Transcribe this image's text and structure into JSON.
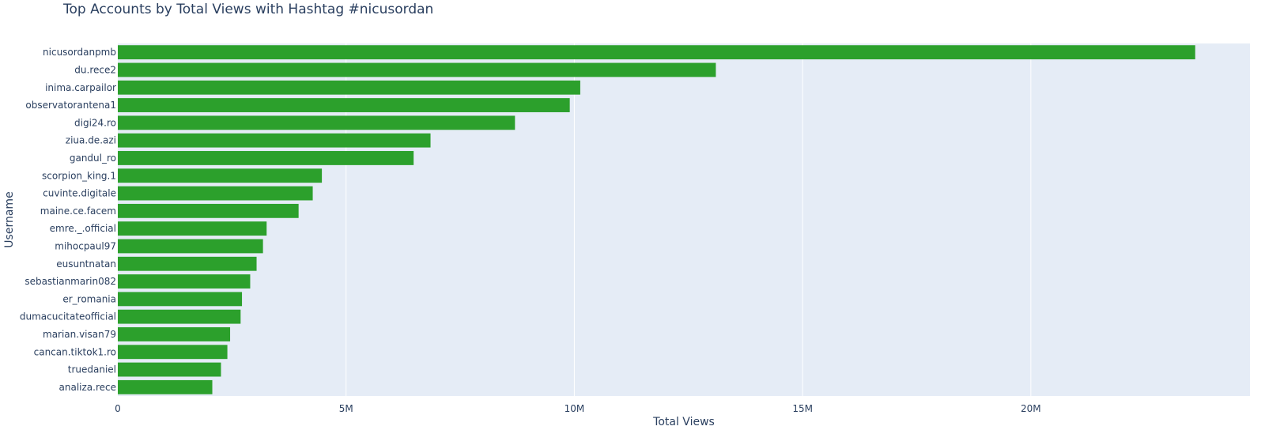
{
  "chart_data": {
    "type": "bar",
    "orientation": "horizontal",
    "title": "Top Accounts by Total Views with Hashtag #nicusordan",
    "xlabel": "Total Views",
    "ylabel": "Username",
    "xlim": [
      0,
      24800000
    ],
    "x_ticks": [
      {
        "value": 0,
        "label": "0"
      },
      {
        "value": 5000000,
        "label": "5M"
      },
      {
        "value": 10000000,
        "label": "10M"
      },
      {
        "value": 15000000,
        "label": "15M"
      },
      {
        "value": 20000000,
        "label": "20M"
      }
    ],
    "grid": true,
    "bar_color": "#2ca02c",
    "plot_background": "#e5ecf6",
    "categories": [
      "nicusordanpmb",
      "du.rece2",
      "inima.carpailor",
      "observatorantena1",
      "digi24.ro",
      "ziua.de.azi",
      "gandul_ro",
      "scorpion_king.1",
      "cuvinte.digitale",
      "maine.ce.facem",
      "emre._.official",
      "mihocpaul97",
      "eusuntnatan",
      "sebastianmarin082",
      "er_romania",
      "dumacucitateofficial",
      "marian.visan79",
      "cancan.tiktok1.ro",
      "truedaniel",
      "analiza.rece"
    ],
    "values": [
      23600000,
      13100000,
      10130000,
      9900000,
      8700000,
      6850000,
      6480000,
      4470000,
      4270000,
      3960000,
      3260000,
      3180000,
      3040000,
      2900000,
      2720000,
      2690000,
      2460000,
      2400000,
      2260000,
      2070000
    ]
  }
}
